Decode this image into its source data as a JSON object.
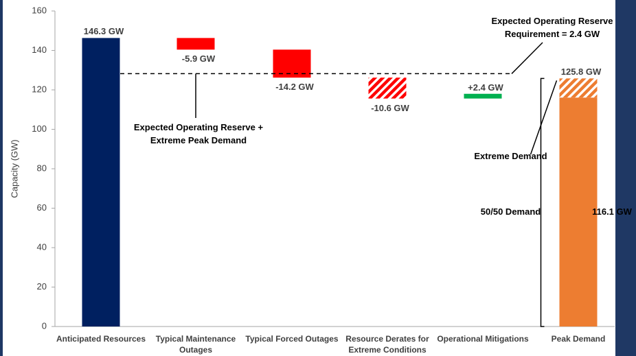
{
  "chart_data": {
    "type": "waterfall",
    "y_label": "Capacity (GW)",
    "categories": [
      "Anticipated Resources",
      "Typical Maintenance Outages",
      "Typical Forced Outages",
      "Resource Derates for Extreme Conditions",
      "Operational Mitigations",
      "Peak Demand"
    ],
    "kinds": [
      "total",
      "delta",
      "delta",
      "delta",
      "delta",
      "total"
    ],
    "values": [
      146.3,
      -5.9,
      -14.2,
      -10.6,
      2.4,
      125.8
    ],
    "value_labels": [
      "146.3 GW",
      "-5.9 GW",
      "-14.2 GW",
      "-10.6 GW",
      "+2.4 GW",
      "125.8 GW"
    ],
    "colors": [
      "#002060",
      "#ff0000",
      "#ff0000",
      "#ff0000",
      "#00b050",
      "#ed7d31"
    ],
    "hatched": [
      false,
      false,
      false,
      true,
      false,
      false
    ],
    "demand_split": {
      "value": 116.1,
      "value_label": "116.1 GW",
      "name": "50/50 Demand",
      "rest_name": "Extreme Demand"
    },
    "reference_line": {
      "value": 128.2,
      "label": "Expected Operating Reserve + Extreme Peak Demand"
    },
    "reserve_note": "Expected Operating Reserve Requirement = 2.4 GW",
    "ylim": [
      0,
      160
    ],
    "yticks": [
      0,
      20,
      40,
      60,
      80,
      100,
      120,
      140,
      160
    ],
    "grid": false
  }
}
